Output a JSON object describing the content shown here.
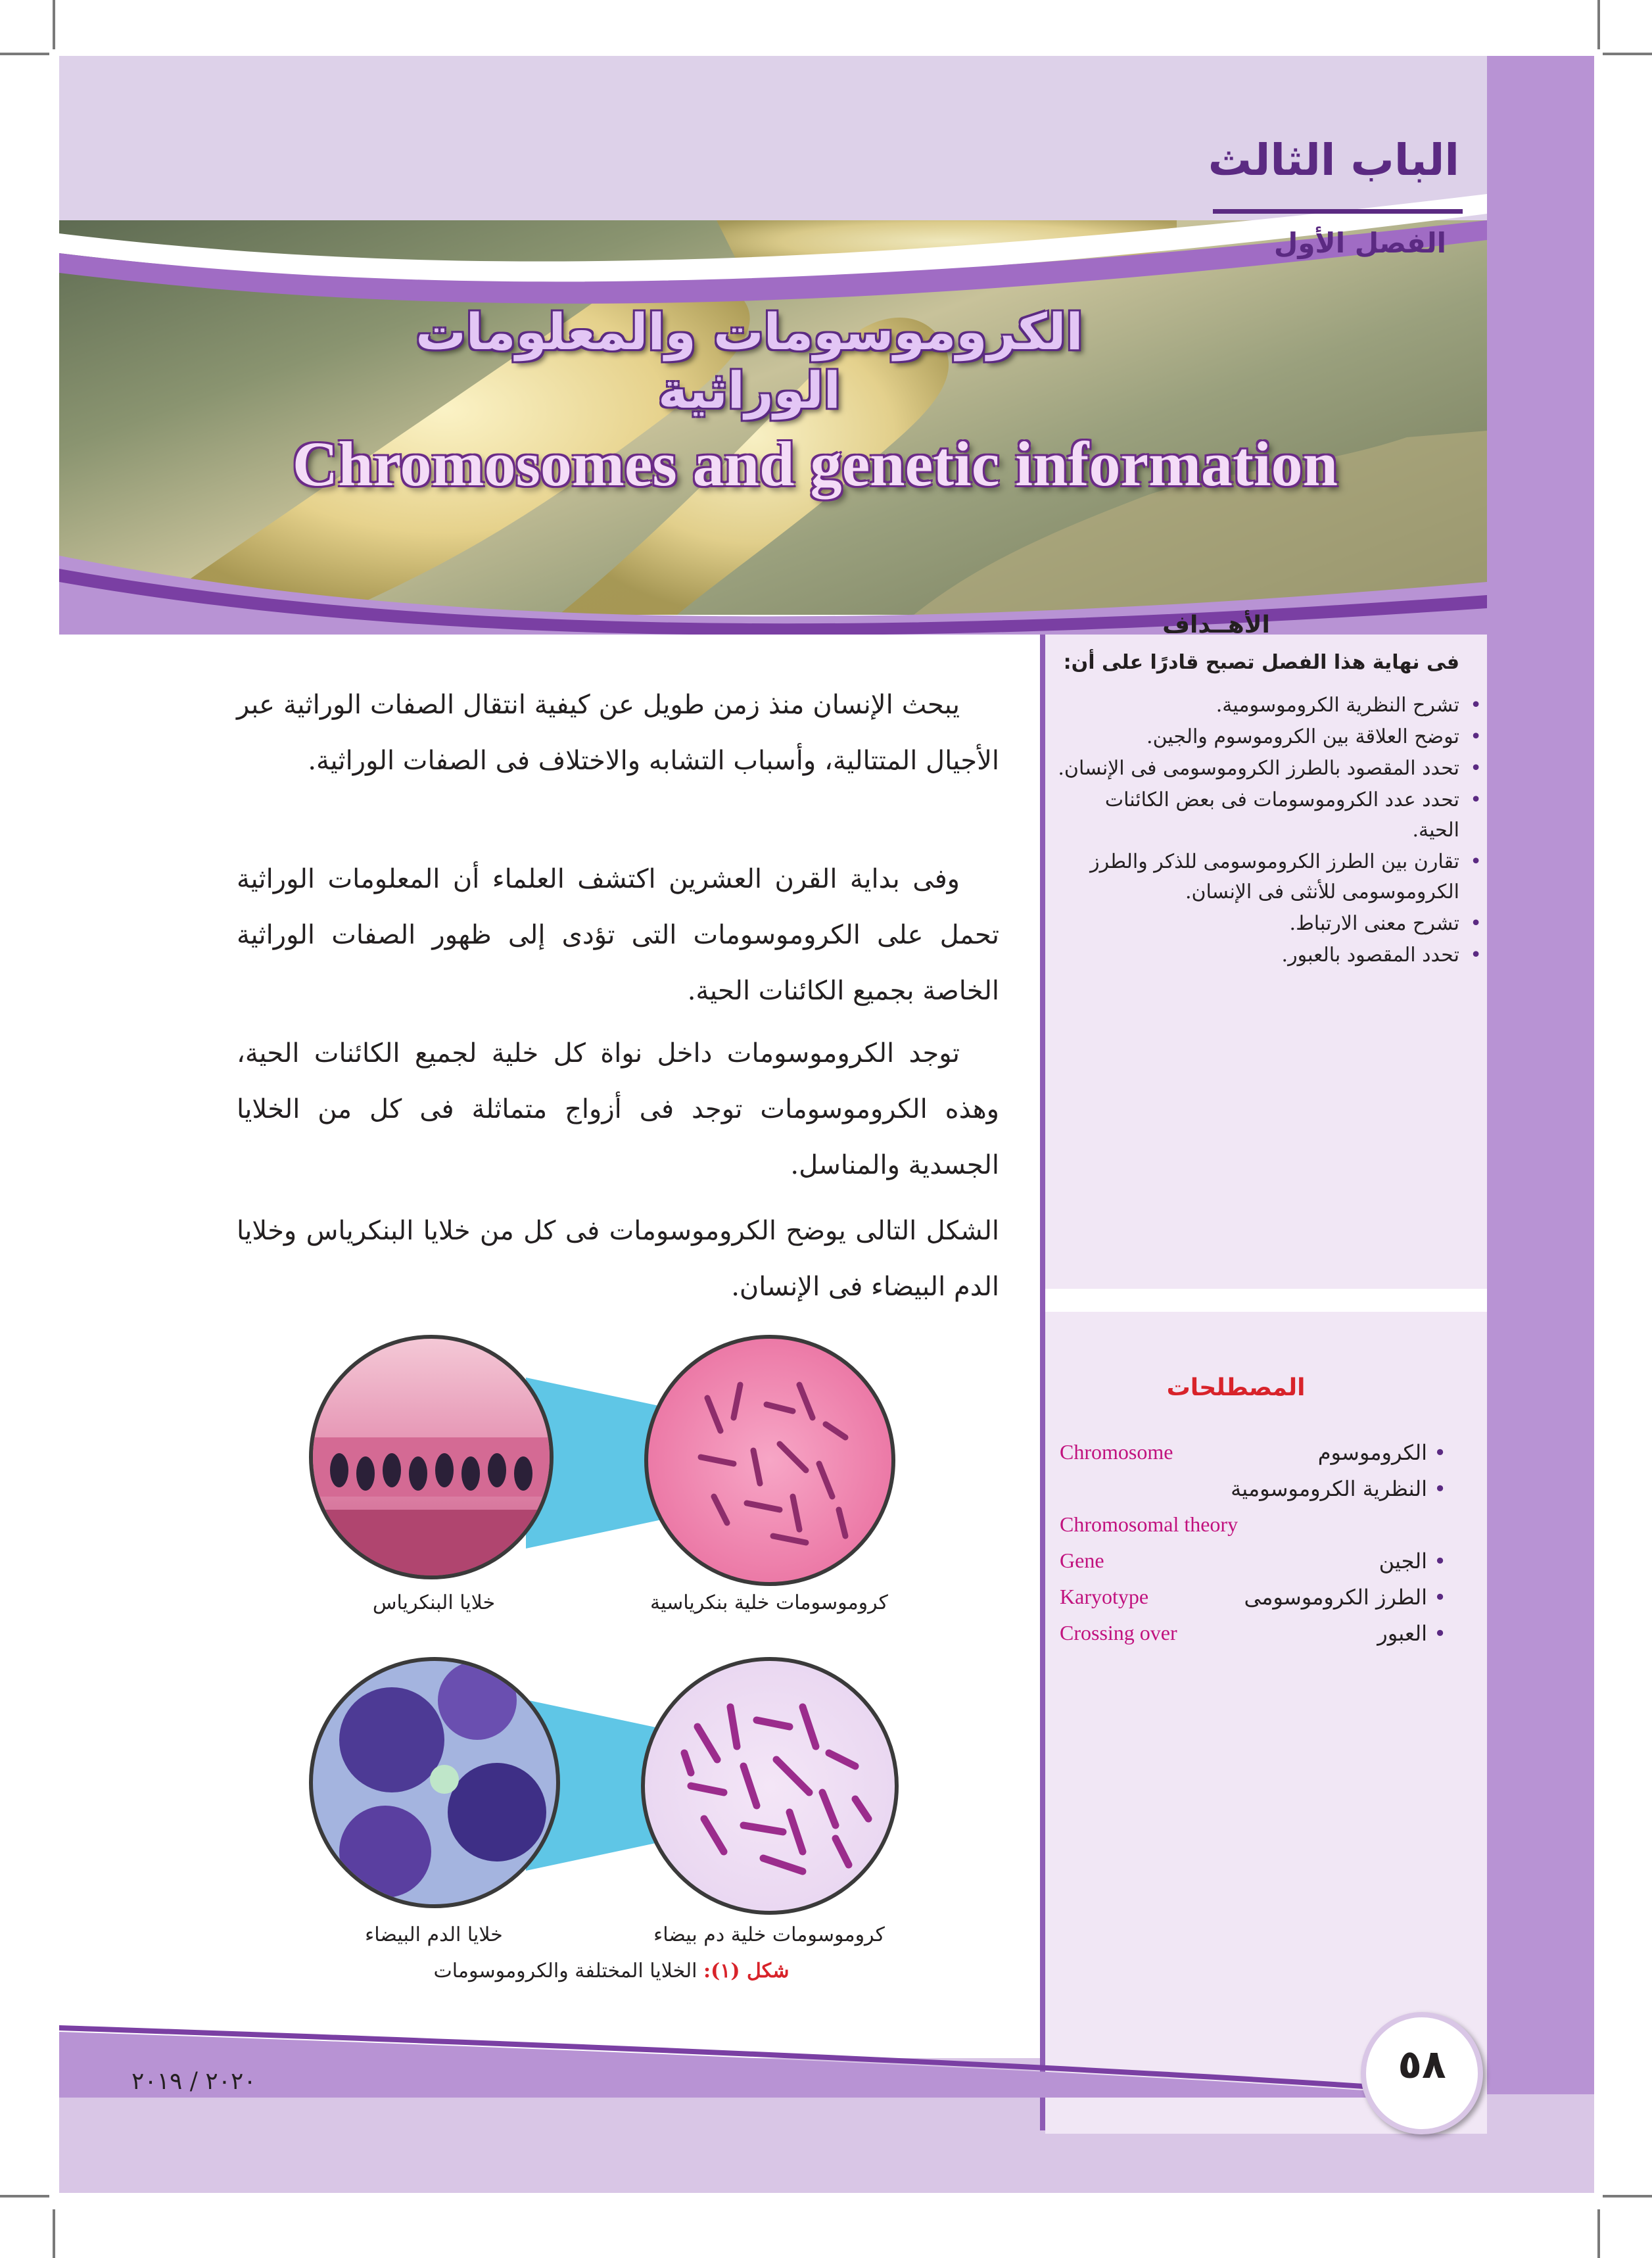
{
  "header": {
    "chapter_label": "الباب الثالث",
    "section_label": "الفصل الأول",
    "title_ar": "الكروموسومات والمعلومات الوراثية",
    "title_en": "Chromosomes and genetic information"
  },
  "body": {
    "paragraphs": [
      "يبحث الإنسان منذ زمن طويل عن كيفية انتقال الصفات الوراثية عبر الأجيال المتتالية، وأسباب التشابه والاختلاف فى الصفات الوراثية.",
      "وفى بداية القرن العشرين اكتشف العلماء أن المعلومات الوراثية تحمل على الكروموسومات التى تؤدى إلى ظهور الصفات الوراثية الخاصة بجميع الكائنات الحية.",
      "توجد الكروموسومات داخل نواة كل خلية لجميع الكائنات الحية، وهذه الكروموسومات توجد فى أزواج متماثلة فى كل من الخلايا الجسدية والمناسل.",
      "الشكل التالى يوضح الكروموسومات فى كل من خلايا البنكرياس وخلايا الدم البيضاء فى الإنسان."
    ]
  },
  "figure": {
    "labels": {
      "pancreas_cells": "خلايا البنكرياس",
      "pancreas_chromosomes": "كروموسومات خلية بنكرياسية",
      "wbc_cells": "خلايا الدم البيضاء",
      "wbc_chromosomes": "كروموسومات خلية دم بيضاء"
    },
    "caption_label": "شكل (١):",
    "caption_text": "الخلايا المختلفة والكروموسومات"
  },
  "goals": {
    "title": "الأهــداف",
    "intro": "فى نهاية هذا الفصل تصبح قادرًا على أن:",
    "items": [
      "تشرح النظرية الكروموسومية.",
      "توضح العلاقة بين الكروموسوم والجين.",
      "تحدد المقصود بالطرز الكروموسومى فى الإنسان.",
      "تحدد عدد الكروموسومات فى بعض الكائنات الحية.",
      "تقارن بين الطرز الكروموسومى للذكر والطرز الكروموسومى للأنثى فى الإنسان.",
      "تشرح معنى الارتباط.",
      "تحدد المقصود بالعبور."
    ]
  },
  "terms": {
    "title": "المصطلحات",
    "items": [
      {
        "ar": "الكروموسوم",
        "en": "Chromosome"
      },
      {
        "ar": "النظرية الكروموسومية",
        "en": "Chromosomal theory"
      },
      {
        "ar": "الجين",
        "en": "Gene"
      },
      {
        "ar": "الطرز الكروموسومى",
        "en": "Karyotype"
      },
      {
        "ar": "العبور",
        "en": "Crossing over"
      }
    ]
  },
  "footer": {
    "page_number": "٥٨",
    "year": "٢٠٢٠ / ٢٠١٩"
  },
  "colors": {
    "accent_purple": "#5b2a82",
    "sidebar_bg": "#f1e7f5",
    "term_en_color": "#c1127e",
    "terms_title_color": "#d8232a"
  }
}
